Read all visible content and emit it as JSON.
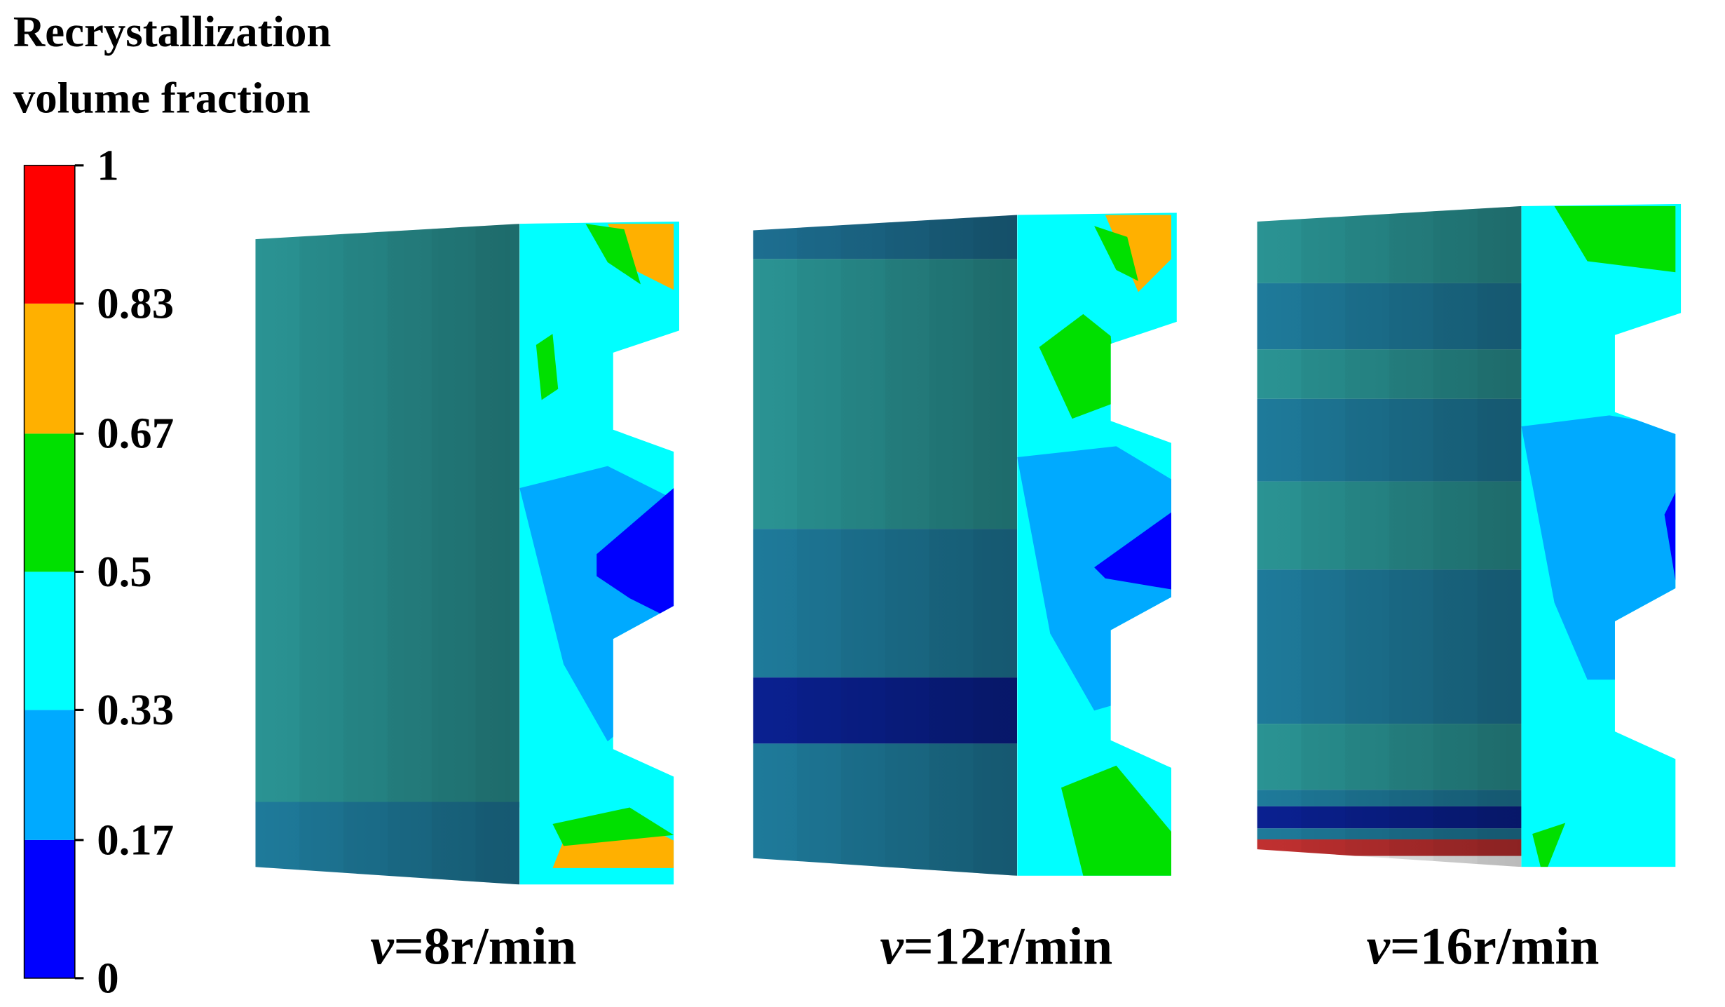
{
  "legend": {
    "title": [
      "Recrystallization",
      "volume fraction"
    ],
    "ticks": [
      0,
      0.17,
      0.33,
      0.5,
      0.67,
      0.83,
      1
    ],
    "colors": [
      "#0000ff",
      "#00aaff",
      "#00ffff",
      "#00e000",
      "#ffb000",
      "#ff0000"
    ]
  },
  "panels": [
    {
      "variable": "v",
      "text": "=8r/min"
    },
    {
      "variable": "v",
      "text": "=12r/min"
    },
    {
      "variable": "v",
      "text": "=16r/min"
    }
  ]
}
